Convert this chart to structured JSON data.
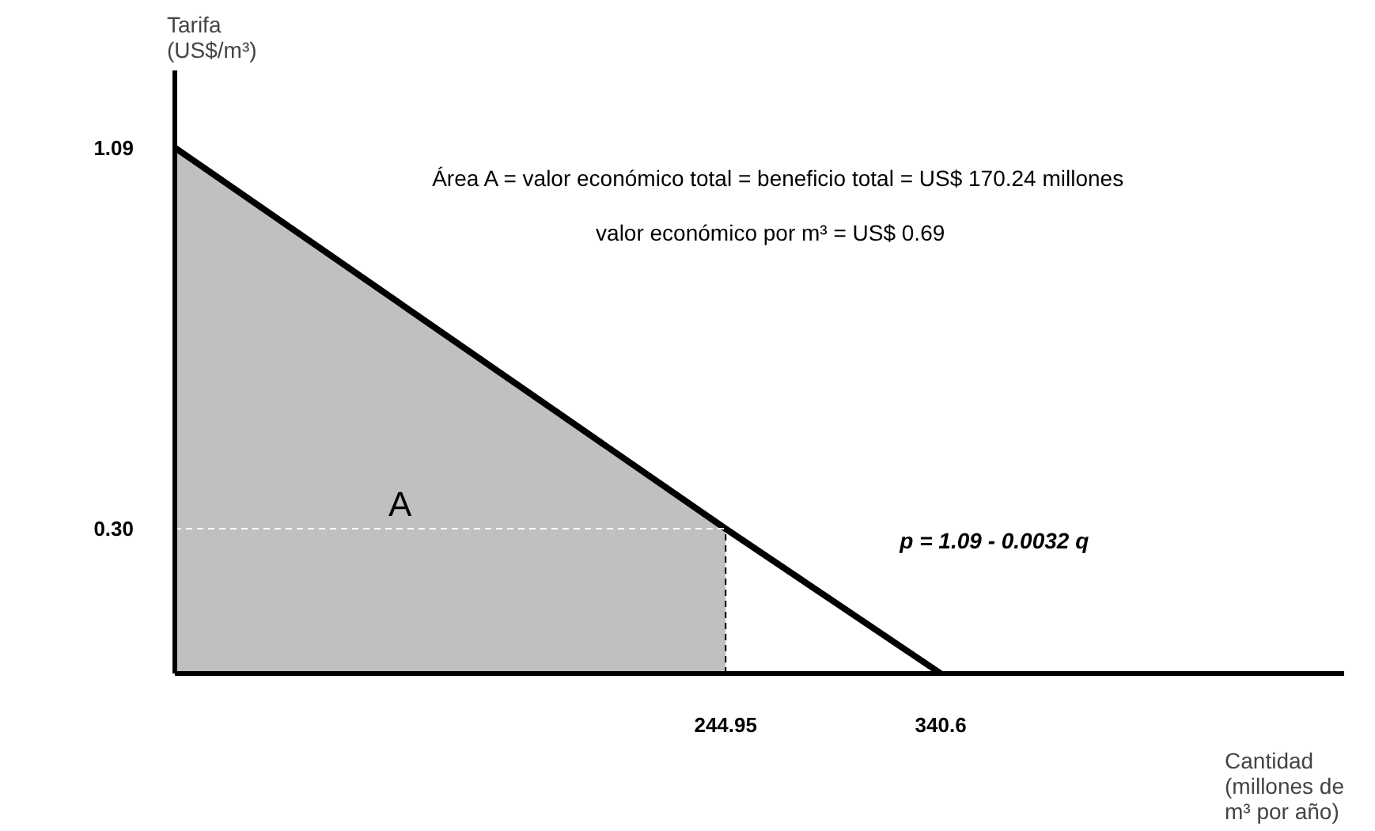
{
  "chart_data": {
    "type": "line",
    "xlabel": "Cantidad\n(millones de\nm³ por año)",
    "ylabel": "Tarifa\n(US$/m³)",
    "xlim": [
      0,
      520
    ],
    "ylim": [
      0,
      1.25
    ],
    "xticks": [
      244.95,
      340.6
    ],
    "yticks": [
      {
        "value": 1.09,
        "label": "1.09"
      },
      {
        "value": 0.3,
        "label": "0.30"
      }
    ],
    "series": [
      {
        "type": "area",
        "color": "#c0c0c0",
        "x": [
          0,
          244.95
        ],
        "values": [
          1.09,
          0.3
        ]
      },
      {
        "color": "#000000",
        "x": [
          0,
          244.95,
          340.6
        ],
        "values": [
          1.09,
          0.3,
          0
        ]
      }
    ],
    "ref_lines": [
      {
        "axis": "y",
        "value": 0.3,
        "color": "#ffffff",
        "line_style": "dashed"
      },
      {
        "axis": "x",
        "value": 244.95,
        "color": "#000000",
        "line_style": "dashed"
      }
    ],
    "annotations": [
      {
        "text": "A",
        "x": 95,
        "y": 0.31
      },
      "Área A = valor económico total = beneficio total = US$ 170.24 millones",
      "valor económico por m³ = US$ 0.69",
      "p = 1.09 - 0.0032 q"
    ],
    "grid": false
  }
}
